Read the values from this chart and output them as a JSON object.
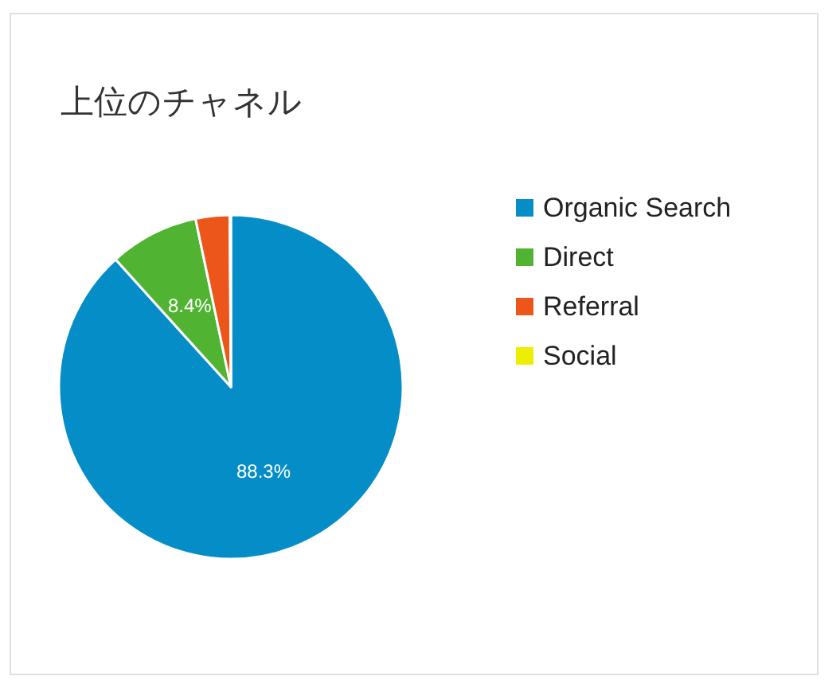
{
  "chart_data": {
    "type": "pie",
    "title": "上位のチャネル",
    "categories": [
      "Organic Search",
      "Direct",
      "Referral",
      "Social"
    ],
    "values": [
      88.3,
      8.4,
      3.2,
      0.1
    ],
    "colors": [
      "#058dc7",
      "#50b432",
      "#ed561b",
      "#edef00"
    ],
    "value_labels": [
      "88.3%",
      "8.4%",
      null,
      null
    ],
    "legend": "right"
  }
}
